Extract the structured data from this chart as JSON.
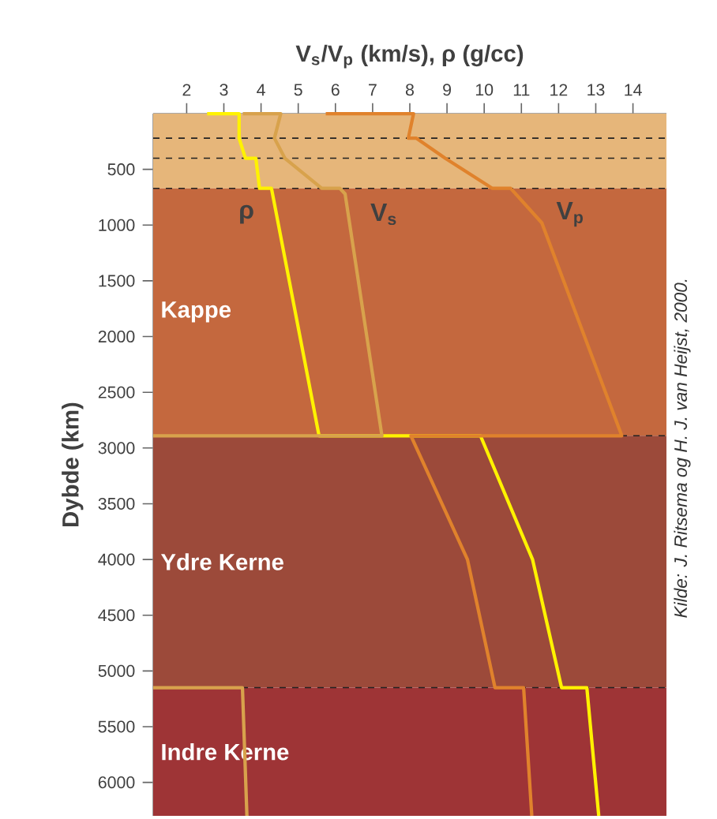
{
  "chart_data": {
    "type": "line",
    "xlabel": "V$_{s}$/V$_{p}$ (km/s), ρ (g/cc)",
    "ylabel": "Dybde (km)",
    "xlim": [
      1.1,
      14.9
    ],
    "ylim": [
      6300,
      0
    ],
    "xticks": [
      2,
      3,
      4,
      5,
      6,
      7,
      8,
      9,
      10,
      11,
      12,
      13,
      14
    ],
    "yticks": [
      500,
      1000,
      1500,
      2000,
      2500,
      3000,
      3500,
      4000,
      4500,
      5000,
      5500,
      6000
    ],
    "grid": false,
    "marker": "none",
    "line_style": "solid",
    "series": [
      {
        "name": "ρ",
        "color": "#fff200",
        "x": [
          2.55,
          3.41,
          3.41,
          3.58,
          3.86,
          3.96,
          4.28,
          5.56,
          9.9,
          11.3,
          12.08,
          12.76,
          13.08
        ],
        "values": [
          0,
          0,
          220,
          400,
          400,
          670,
          670,
          2890,
          2890,
          4000,
          5150,
          5150,
          6300
        ]
      },
      {
        "name": "V$_{s}$",
        "color": "#d8a24c",
        "x": [
          3.51,
          4.53,
          4.36,
          4.64,
          5.63,
          6.12,
          6.26,
          7.25,
          1.1,
          null,
          1.1,
          3.5,
          3.62
        ],
        "values": [
          0,
          0,
          220,
          400,
          670,
          670,
          720,
          2890,
          2890,
          null,
          5150,
          5150,
          6300
        ]
      },
      {
        "name": "V$_{p}$",
        "color": "#e0822c",
        "x": [
          5.74,
          8.1,
          7.96,
          8.17,
          8.95,
          10.22,
          10.71,
          11.55,
          13.7,
          8.03,
          9.55,
          10.29,
          11.06,
          11.28
        ],
        "values": [
          0,
          0,
          220,
          220,
          400,
          670,
          670,
          980,
          2890,
          2890,
          4000,
          5150,
          5150,
          6300
        ]
      }
    ],
    "bands": [
      {
        "axis": "y",
        "from": 0,
        "to": 670,
        "color": "#e6b67a"
      },
      {
        "axis": "y",
        "from": 670,
        "to": 2890,
        "label": "Kappe",
        "color": "#c4683e"
      },
      {
        "axis": "y",
        "from": 2890,
        "to": 5150,
        "label": "Ydre Kerne",
        "color": "#9c4a3a"
      },
      {
        "axis": "y",
        "from": 5150,
        "to": 6300,
        "label": "Indre Kerne",
        "color": "#9e3436"
      }
    ],
    "ref_lines": [
      {
        "axis": "y",
        "value": 220,
        "line_style": "dashed"
      },
      {
        "axis": "y",
        "value": 400,
        "line_style": "dashed"
      },
      {
        "axis": "y",
        "value": 670,
        "line_style": "dashed"
      },
      {
        "axis": "y",
        "value": 2890,
        "line_style": "dashed"
      },
      {
        "axis": "y",
        "value": 5150,
        "line_style": "dashed"
      }
    ],
    "annotations": [
      "Kilde: J. Ritsema og H. J. van Heijst, 2000."
    ]
  }
}
